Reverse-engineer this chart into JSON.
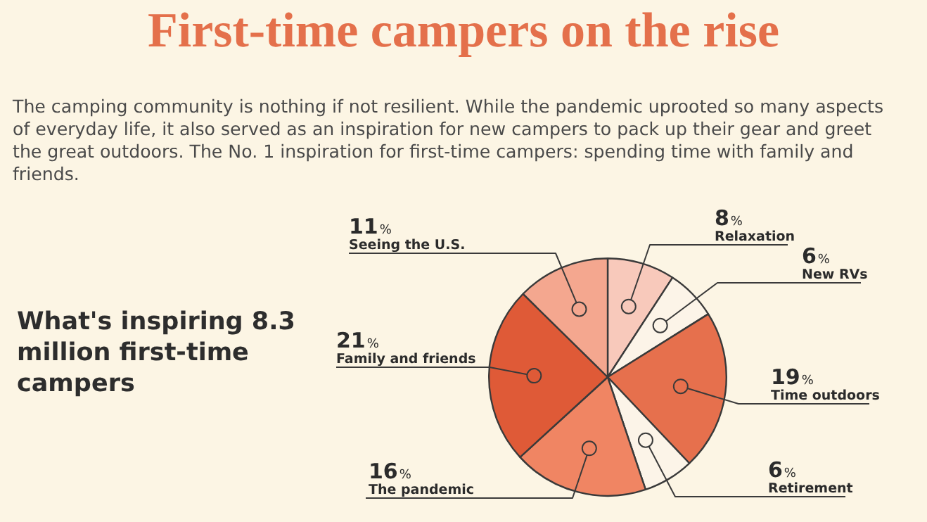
{
  "chart_data": {
    "type": "pie",
    "title": "First-time campers on the rise",
    "subtitle": "The camping community is nothing if not resilient. While the pandemic uprooted so many aspects of everyday life, it also served as an inspiration for new campers to pack up their gear and greet the great outdoors. The No. 1 inspiration for first-time campers: spending time with family and friends.",
    "annotations": [
      "What's inspiring 8.3 million first-time campers"
    ],
    "categories": [
      "Relaxation",
      "New RVs",
      "Time outdoors",
      "Retirement",
      "The pandemic",
      "Family and friends",
      "Seeing the U.S."
    ],
    "values": [
      8,
      6,
      19,
      6,
      16,
      21,
      11
    ],
    "value_labels": [
      "8%",
      "6%",
      "19%",
      "6%",
      "16%",
      "21%",
      "11%"
    ],
    "colors": [
      "#f8c9bb",
      "#fcf4e8",
      "#e6704d",
      "#fcf4e8",
      "#f08563",
      "#df5a37",
      "#f4a78f"
    ],
    "legend": false
  }
}
